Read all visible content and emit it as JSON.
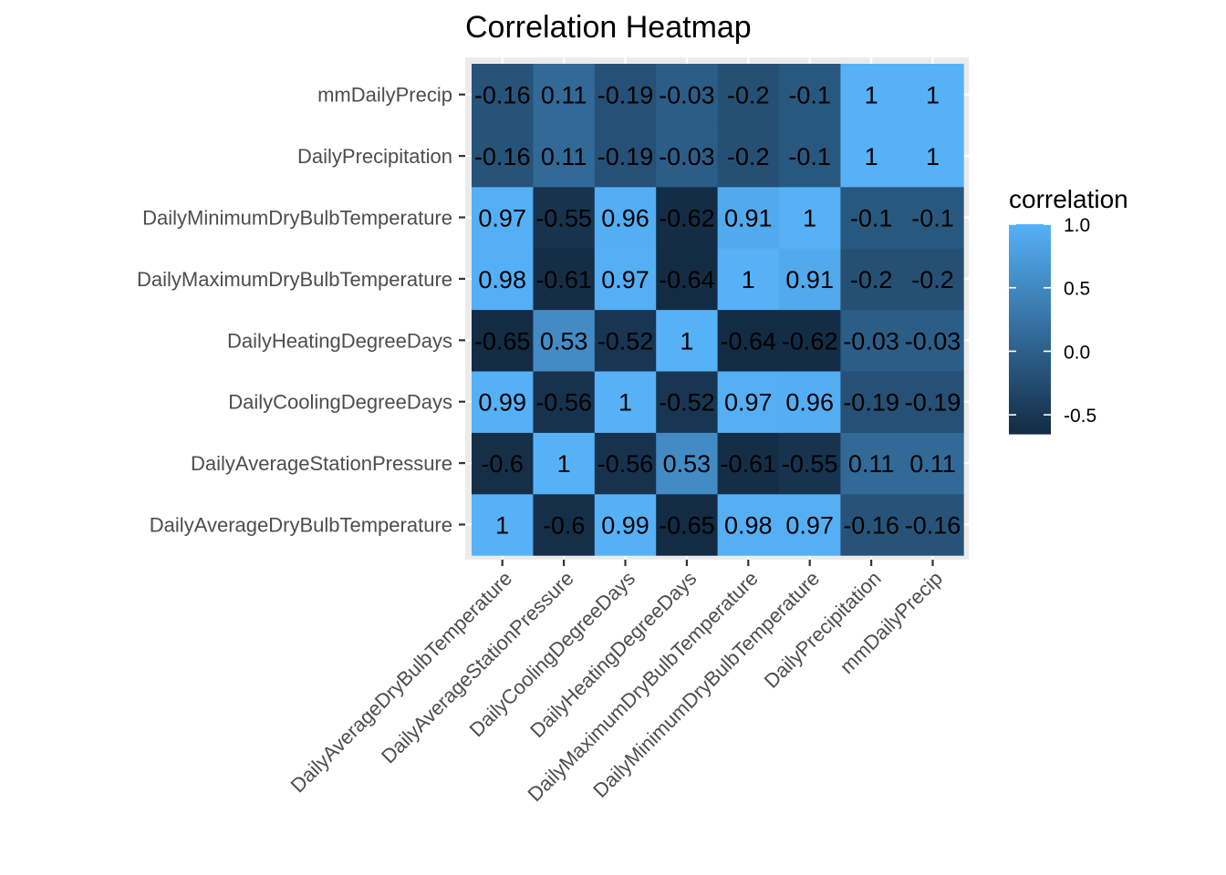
{
  "chart_data": {
    "type": "heatmap",
    "title": "Correlation Heatmap",
    "xlabel": "",
    "ylabel": "",
    "x_categories": [
      "DailyAverageDryBulbTemperature",
      "DailyAverageStationPressure",
      "DailyCoolingDegreeDays",
      "DailyHeatingDegreeDays",
      "DailyMaximumDryBulbTemperature",
      "DailyMinimumDryBulbTemperature",
      "DailyPrecipitation",
      "mmDailyPrecip"
    ],
    "y_categories": [
      "DailyAverageDryBulbTemperature",
      "DailyAverageStationPressure",
      "DailyCoolingDegreeDays",
      "DailyHeatingDegreeDays",
      "DailyMaximumDryBulbTemperature",
      "DailyMinimumDryBulbTemperature",
      "DailyPrecipitation",
      "mmDailyPrecip"
    ],
    "values": [
      [
        1,
        -0.6,
        0.99,
        -0.65,
        0.98,
        0.97,
        -0.16,
        -0.16
      ],
      [
        -0.6,
        1,
        -0.56,
        0.53,
        -0.61,
        -0.55,
        0.11,
        0.11
      ],
      [
        0.99,
        -0.56,
        1,
        -0.52,
        0.97,
        0.96,
        -0.19,
        -0.19
      ],
      [
        -0.65,
        0.53,
        -0.52,
        1,
        -0.64,
        -0.62,
        -0.03,
        -0.03
      ],
      [
        0.98,
        -0.61,
        0.97,
        -0.64,
        1,
        0.91,
        -0.2,
        -0.2
      ],
      [
        0.97,
        -0.55,
        0.96,
        -0.62,
        0.91,
        1,
        -0.1,
        -0.1
      ],
      [
        -0.16,
        0.11,
        -0.19,
        -0.03,
        -0.2,
        -0.1,
        1,
        1
      ],
      [
        -0.16,
        0.11,
        -0.19,
        -0.03,
        -0.2,
        -0.1,
        1,
        1
      ]
    ],
    "legend": {
      "title": "correlation",
      "placement": "right",
      "ticks": [
        1.0,
        0.5,
        0.0,
        -0.5
      ],
      "tick_labels": [
        "1.0",
        "0.5",
        "0.0",
        "-0.5"
      ],
      "range": [
        -0.65,
        1.0
      ]
    },
    "colors": {
      "low": "#132B43",
      "high": "#56B1F7",
      "panel_background": "#EBEBEB",
      "grid": "#FFFFFF"
    }
  }
}
